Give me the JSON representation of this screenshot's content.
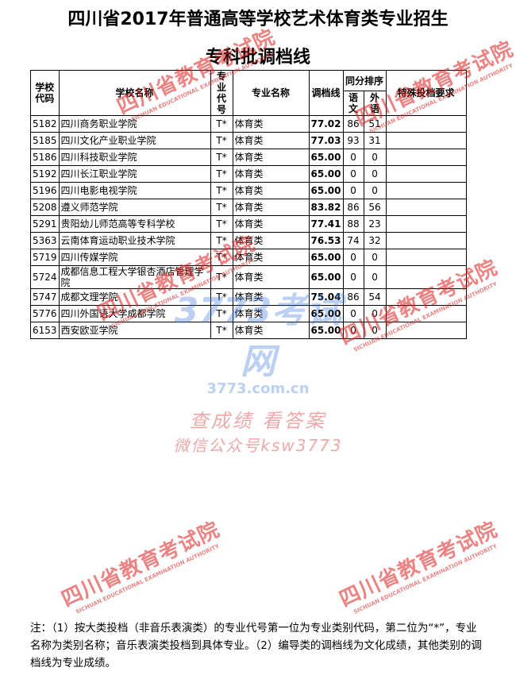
{
  "header": {
    "title": "四川省2017年普通高等学校艺术体育类专业招生",
    "subtitle": "专科批调档线"
  },
  "table": {
    "columns": {
      "code": "学校代码",
      "name": "学校名称",
      "major_code": "专业代号",
      "major_name": "专业名称",
      "score": "调档线",
      "tie": "同分排序",
      "chinese": "语文",
      "foreign": "外语",
      "special": "特殊投档要求"
    },
    "rows": [
      [
        "5182",
        "四川商务职业学院",
        "T*",
        "体育类",
        "77.02",
        "86",
        "51"
      ],
      [
        "5185",
        "四川文化产业职业学院",
        "T*",
        "体育类",
        "77.03",
        "93",
        "31"
      ],
      [
        "5186",
        "四川科技职业学院",
        "T*",
        "体育类",
        "65.00",
        "0",
        "0"
      ],
      [
        "5192",
        "四川长江职业学院",
        "T*",
        "体育类",
        "65.00",
        "0",
        "0"
      ],
      [
        "5196",
        "四川电影电视学院",
        "T*",
        "体育类",
        "65.00",
        "0",
        "0"
      ],
      [
        "5208",
        "遵义师范学院",
        "T*",
        "体育类",
        "83.82",
        "86",
        "56"
      ],
      [
        "5291",
        "贵阳幼儿师范高等专科学校",
        "T*",
        "体育类",
        "77.41",
        "88",
        "23"
      ],
      [
        "5363",
        "云南体育运动职业技术学院",
        "T*",
        "体育类",
        "76.53",
        "74",
        "32"
      ],
      [
        "5719",
        "四川传媒学院",
        "T*",
        "体育类",
        "65.00",
        "0",
        "0"
      ],
      [
        "5724",
        "成都信息工程大学银杏酒店管理学院",
        "T*",
        "体育类",
        "65.00",
        "0",
        "0"
      ],
      [
        "5747",
        "成都文理学院",
        "T*",
        "体育类",
        "75.04",
        "86",
        "54"
      ],
      [
        "5776",
        "四川外国语大学成都学院",
        "T*",
        "体育类",
        "65.00",
        "0",
        "0"
      ],
      [
        "6153",
        "西安欧亚学院",
        "T*",
        "体育类",
        "65.00",
        "0",
        "0"
      ]
    ]
  },
  "footnote": "注：（1）按大类投档（非音乐表演类）的专业代号第一位为专业类别代码，第二位为“*”，专业名称为类别名称；音乐表演类投档到具体专业。（2）编导类的调档线为文化成绩，其他类别的调档线为专业成绩。",
  "watermarks": [
    {
      "title": "四川省教育考试院",
      "subtitle": "SICHUAN EDUCATIONAL EXAMINATION AUTHORITY"
    },
    {
      "title": "四川省教育考试院",
      "subtitle": "SICHUAN EDUCATIONAL EXAMINATION AUTHORITY"
    },
    {
      "title": "四川省教育考试院",
      "subtitle": "SICHUAN EDUCATIONAL EXAMINATION AUTHORITY"
    },
    {
      "title": "四川省教育考试院",
      "subtitle": "SICHUAN EDUCATIONAL EXAMINATION AUTHORITY"
    },
    {
      "title": "四川省教育考试院",
      "subtitle": "SICHUAN EDUCATIONAL EXAMINATION AUTHORITY"
    },
    {
      "title": "四川省教育考试院",
      "subtitle": "SICHUAN EDUCATIONAL EXAMINATION AUTHORITY"
    }
  ],
  "site_watermark": {
    "logo": "3773考试网",
    "url": "3773.com.cn",
    "line1": "查成绩 看答案",
    "line2": "微信公众号ksw3773"
  }
}
